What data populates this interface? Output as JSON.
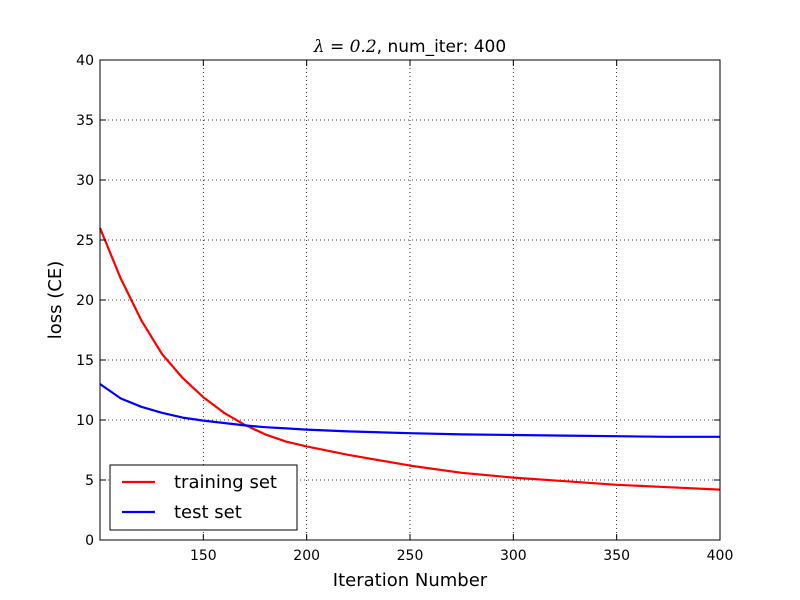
{
  "chart_data": {
    "type": "line",
    "title": "λ = 0.2, num_iter: 400",
    "title_parts": {
      "math": "λ = 0.2",
      "rest": ", num_iter: 400"
    },
    "xlabel": "Iteration Number",
    "ylabel": "loss (CE)",
    "xlim": [
      100,
      400
    ],
    "ylim": [
      0,
      40
    ],
    "xticks": [
      150,
      200,
      250,
      300,
      350,
      400
    ],
    "yticks": [
      0,
      5,
      10,
      15,
      20,
      25,
      30,
      35,
      40
    ],
    "grid": true,
    "legend_position": "lower-left",
    "series": [
      {
        "name": "training set",
        "color": "#ff0000",
        "x": [
          100,
          110,
          120,
          130,
          140,
          150,
          160,
          170,
          180,
          190,
          200,
          220,
          250,
          275,
          300,
          325,
          350,
          375,
          400
        ],
        "values": [
          26.0,
          21.8,
          18.3,
          15.5,
          13.5,
          11.9,
          10.6,
          9.6,
          8.8,
          8.2,
          7.8,
          7.1,
          6.2,
          5.6,
          5.2,
          4.9,
          4.6,
          4.4,
          4.2
        ]
      },
      {
        "name": "test set",
        "color": "#0000ff",
        "x": [
          100,
          110,
          120,
          130,
          140,
          150,
          160,
          170,
          180,
          190,
          200,
          220,
          250,
          275,
          300,
          325,
          350,
          375,
          400
        ],
        "values": [
          13.0,
          11.8,
          11.1,
          10.6,
          10.2,
          9.95,
          9.75,
          9.55,
          9.4,
          9.3,
          9.2,
          9.05,
          8.9,
          8.8,
          8.75,
          8.7,
          8.65,
          8.6,
          8.6
        ]
      }
    ]
  }
}
